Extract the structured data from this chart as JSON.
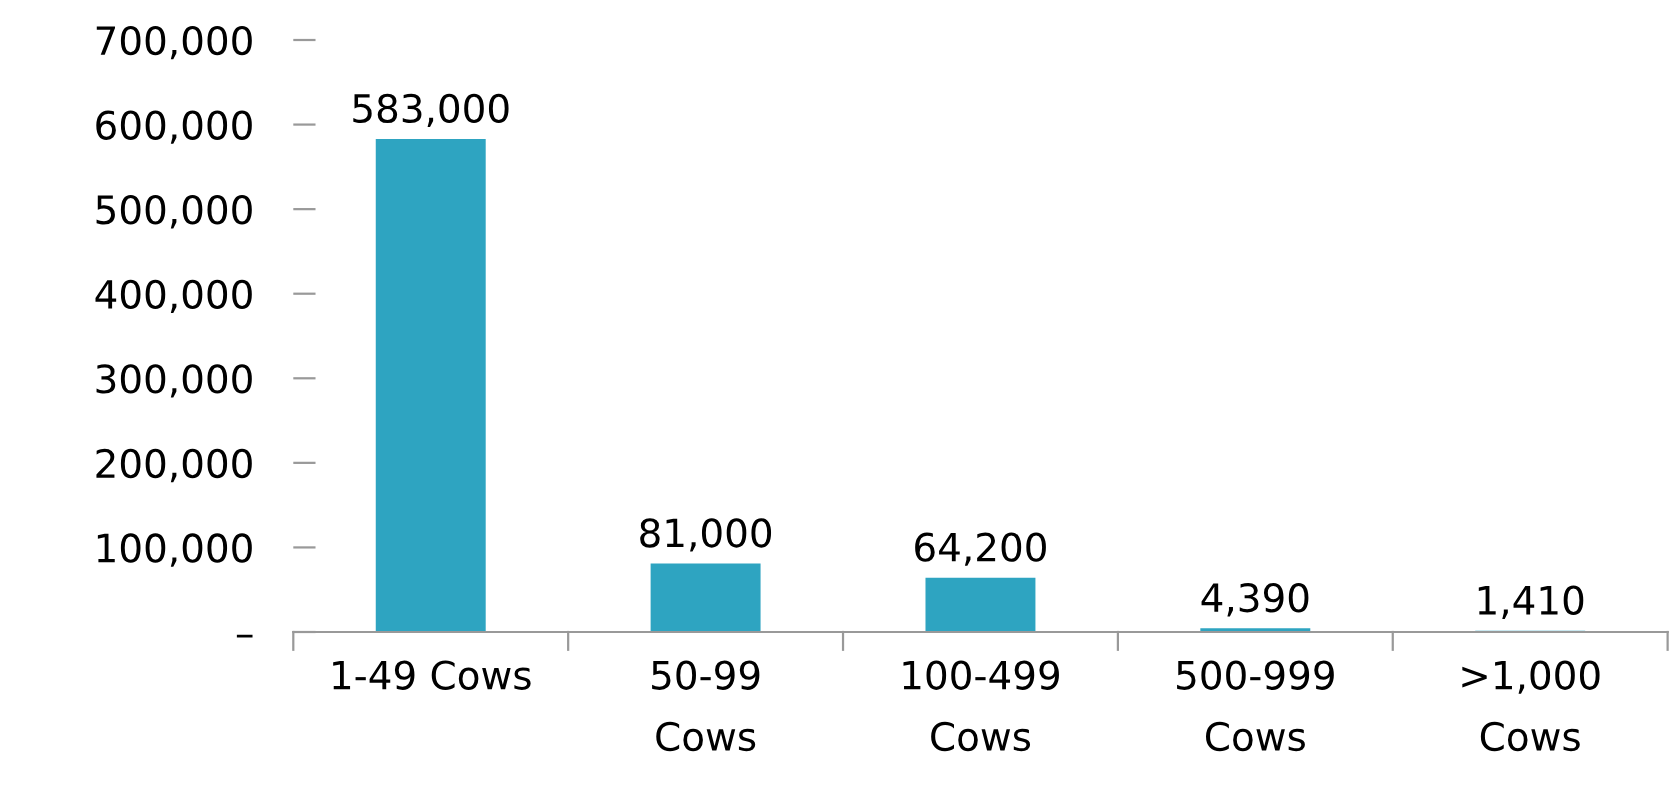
{
  "chart_data": {
    "type": "bar",
    "categories": [
      "1-49 Cows",
      "50-99\nCows",
      "100-499\nCows",
      "500-999\nCows",
      ">1,000\nCows"
    ],
    "values": [
      583000,
      81000,
      64200,
      4390,
      1410
    ],
    "color": "#2ea4c1",
    "ylim": [
      0,
      700000
    ],
    "yticks": [
      {
        "value": 0,
        "label": "–"
      },
      {
        "value": 100000,
        "label": "100,000"
      },
      {
        "value": 200000,
        "label": "200,000"
      },
      {
        "value": 300000,
        "label": "300,000"
      },
      {
        "value": 400000,
        "label": "400,000"
      },
      {
        "value": 500000,
        "label": "500,000"
      },
      {
        "value": 600000,
        "label": "600,000"
      },
      {
        "value": 700000,
        "label": "700,000"
      }
    ],
    "value_labels": [
      "583,000",
      "81,000",
      "64,200",
      "4,390",
      "1,410"
    ],
    "grid": false,
    "legend": false
  }
}
